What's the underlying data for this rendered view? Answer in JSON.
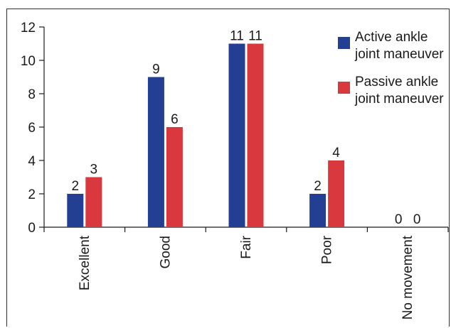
{
  "chart_data": {
    "type": "bar",
    "categories": [
      "Excellent",
      "Good",
      "Fair",
      "Poor",
      "No movement"
    ],
    "series": [
      {
        "name": "Active ankle joint maneuver",
        "legend_lines": [
          "Active ankle",
          "joint maneuver"
        ],
        "color": "#233f93",
        "values": [
          2,
          9,
          11,
          2,
          0
        ]
      },
      {
        "name": "Passive ankle joint maneuver",
        "legend_lines": [
          "Passive ankle",
          "joint maneuver"
        ],
        "color": "#d9383f",
        "values": [
          3,
          6,
          11,
          4,
          0
        ]
      }
    ],
    "ylim": [
      0,
      12
    ],
    "yticks": [
      0,
      2,
      4,
      6,
      8,
      10,
      12
    ],
    "title": "",
    "xlabel": "",
    "ylabel": "",
    "grid": false,
    "legend_position": "top-right"
  }
}
